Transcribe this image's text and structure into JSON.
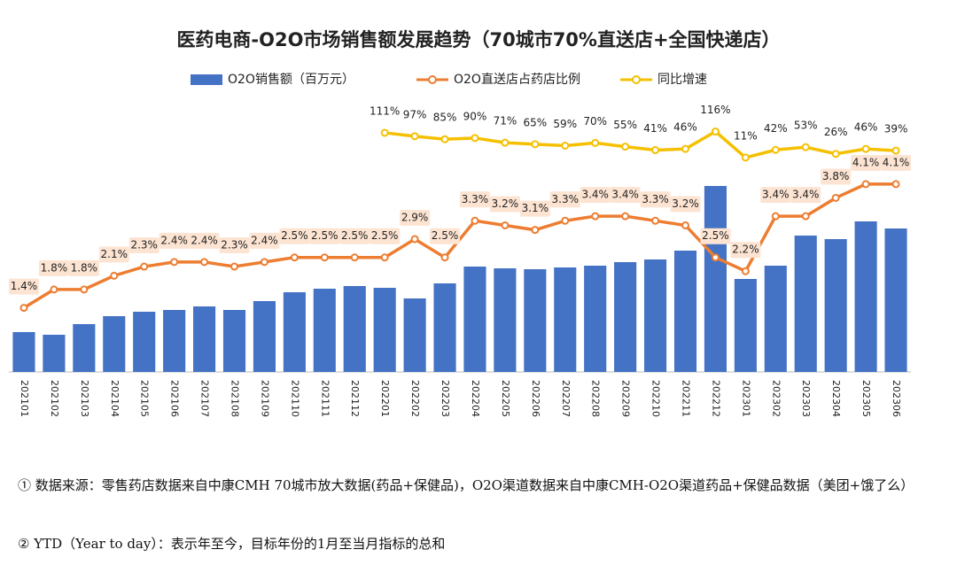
{
  "chart_data": {
    "type": "bar-line",
    "title": "医药电商-O2O市场销售额发展趋势（70城市70%直送店+全国快递店）",
    "categories": [
      "202101",
      "202102",
      "202103",
      "202104",
      "202105",
      "202106",
      "202107",
      "202108",
      "202109",
      "202110",
      "202111",
      "202112",
      "202201",
      "202202",
      "202203",
      "202204",
      "202205",
      "202206",
      "202207",
      "202208",
      "202209",
      "202210",
      "202211",
      "202212",
      "202301",
      "202302",
      "202303",
      "202304",
      "202305",
      "202306"
    ],
    "ylim": [
      0,
      300
    ],
    "y2lim": [
      0,
      5.8
    ],
    "y3lim": [
      -854,
      218
    ],
    "series": [
      {
        "name": "O2O销售额（百万元）",
        "type": "bar",
        "color": "#4472c4",
        "values": [
          45,
          42,
          54,
          63,
          68,
          70,
          74,
          70,
          80,
          90,
          94,
          97,
          95,
          83,
          100,
          119,
          117,
          116,
          118,
          120,
          124,
          127,
          137,
          210,
          105,
          120,
          154,
          150,
          170,
          162
        ]
      },
      {
        "name": "O2O直送店占药店比例",
        "type": "line",
        "axis": "y2",
        "color": "#ed7d31",
        "values": [
          1.4,
          1.8,
          1.8,
          2.1,
          2.3,
          2.4,
          2.4,
          2.3,
          2.4,
          2.5,
          2.5,
          2.5,
          2.5,
          2.9,
          2.5,
          3.3,
          3.2,
          3.1,
          3.3,
          3.4,
          3.4,
          3.3,
          3.2,
          2.5,
          2.2,
          3.4,
          3.4,
          3.8,
          4.1,
          4.1
        ],
        "value_labels": [
          "1.4%",
          "1.8%",
          "1.8%",
          "2.1%",
          "2.3%",
          "2.4%",
          "2.4%",
          "2.3%",
          "2.4%",
          "2.5%",
          "2.5%",
          "2.5%",
          "2.5%",
          "2.9%",
          "2.5%",
          "3.3%",
          "3.2%",
          "3.1%",
          "3.3%",
          "3.4%",
          "3.4%",
          "3.3%",
          "3.2%",
          "2.5%",
          "2.2%",
          "3.4%",
          "3.4%",
          "3.8%",
          "4.1%",
          "4.1%"
        ]
      },
      {
        "name": "同比增速",
        "type": "line",
        "axis": "y3",
        "color": "#f5c000",
        "values": [
          null,
          null,
          null,
          null,
          null,
          null,
          null,
          null,
          null,
          null,
          null,
          null,
          111,
          97,
          85,
          90,
          71,
          65,
          59,
          70,
          55,
          41,
          46,
          116,
          11,
          42,
          53,
          26,
          46,
          39
        ],
        "value_labels": [
          null,
          null,
          null,
          null,
          null,
          null,
          null,
          null,
          null,
          null,
          null,
          null,
          "111%",
          "97%",
          "85%",
          "90%",
          "71%",
          "65%",
          "59%",
          "70%",
          "55%",
          "41%",
          "46%",
          "116%",
          "11%",
          "42%",
          "53%",
          "26%",
          "46%",
          "39%"
        ]
      }
    ]
  },
  "notes": [
    "① 数据来源：零售药店数据来自中康CMH 70城市放大数据(药品+保健品)，O2O渠道数据来自中康CMH-O2O渠道药品+保健品数据（美团+饿了么）",
    "② YTD（Year to day）：表示年至今，目标年份的1月至当月指标的总和"
  ]
}
